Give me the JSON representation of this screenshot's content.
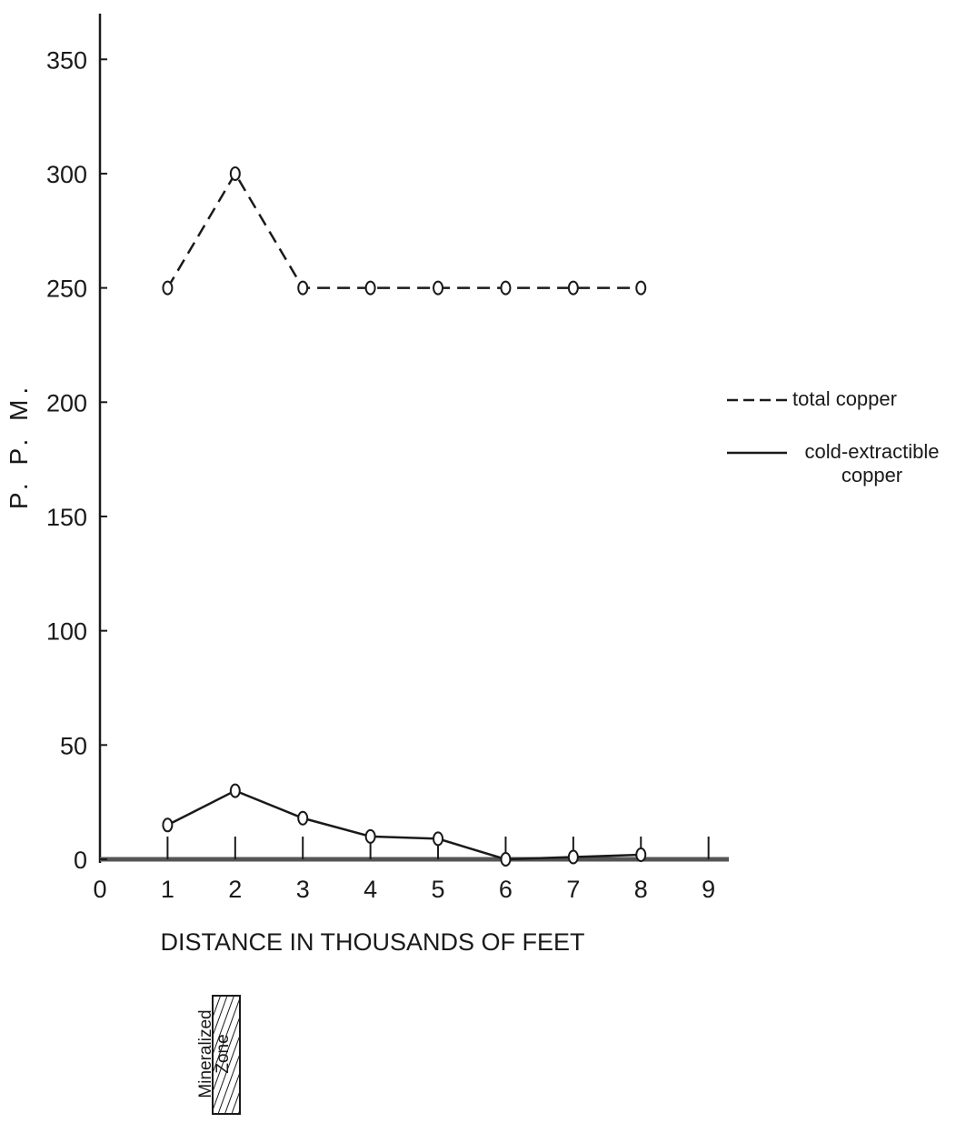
{
  "chart_data": {
    "type": "line",
    "y_label": "P. P. M.",
    "x_label": "DISTANCE IN THOUSANDS OF FEET",
    "annotation": "Mineralized Zone",
    "x": [
      1,
      2,
      3,
      4,
      5,
      6,
      7,
      8
    ],
    "series": [
      {
        "name": "total copper",
        "color": "#1a1a1a",
        "dash": true,
        "values": [
          250,
          300,
          250,
          250,
          250,
          250,
          250,
          250
        ]
      },
      {
        "name": "cold-extractible copper",
        "color": "#1a1a1a",
        "dash": false,
        "values": [
          15,
          30,
          18,
          10,
          9,
          0,
          1,
          2
        ]
      }
    ],
    "xlim": [
      0,
      9.3
    ],
    "xticks": [
      0,
      1,
      2,
      3,
      4,
      5,
      6,
      7,
      8,
      9
    ],
    "ylim": [
      0,
      370
    ],
    "yticks": [
      0,
      50,
      100,
      150,
      200,
      250,
      300,
      350
    ],
    "grid": false,
    "legend": "right"
  }
}
